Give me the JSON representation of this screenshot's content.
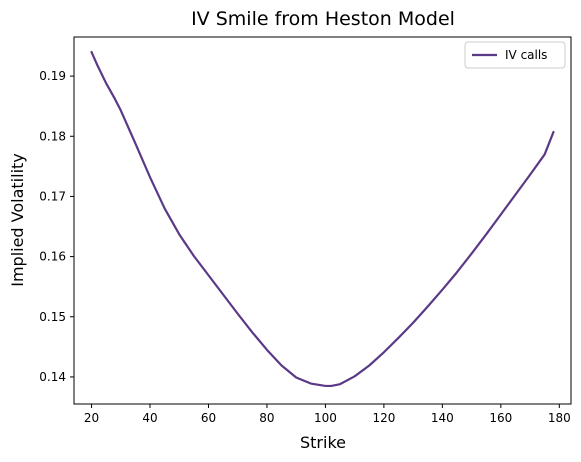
{
  "chart_data": {
    "type": "line",
    "title": "IV Smile from Heston Model",
    "xlabel": "Strike",
    "ylabel": "Implied Volatility",
    "xlim": [
      14,
      184
    ],
    "ylim": [
      0.1355,
      0.1965
    ],
    "xticks": [
      20,
      40,
      60,
      80,
      100,
      120,
      140,
      160,
      180
    ],
    "yticks": [
      0.14,
      0.15,
      0.16,
      0.17,
      0.18,
      0.19
    ],
    "xtick_labels": [
      "20",
      "40",
      "60",
      "80",
      "100",
      "120",
      "140",
      "160",
      "180"
    ],
    "ytick_labels": [
      "0.14",
      "0.15",
      "0.16",
      "0.17",
      "0.18",
      "0.19"
    ],
    "legend_position": "top-right",
    "grid": false,
    "series": [
      {
        "name": "IV calls",
        "color": "#5a3a86",
        "x": [
          20,
          22,
          25,
          28,
          30,
          35,
          40,
          45,
          50,
          55,
          60,
          65,
          70,
          75,
          80,
          85,
          90,
          95,
          100,
          102,
          105,
          110,
          115,
          120,
          125,
          130,
          135,
          140,
          145,
          150,
          155,
          160,
          165,
          170,
          175,
          178
        ],
        "y": [
          0.194,
          0.1918,
          0.1888,
          0.1862,
          0.1843,
          0.1788,
          0.1732,
          0.168,
          0.1637,
          0.1601,
          0.1569,
          0.1537,
          0.1505,
          0.1474,
          0.1445,
          0.1419,
          0.1399,
          0.1389,
          0.1385,
          0.1385,
          0.1388,
          0.1401,
          0.1419,
          0.1441,
          0.1465,
          0.149,
          0.1517,
          0.1545,
          0.1574,
          0.1605,
          0.1637,
          0.167,
          0.1703,
          0.1736,
          0.177,
          0.1807
        ]
      }
    ]
  }
}
